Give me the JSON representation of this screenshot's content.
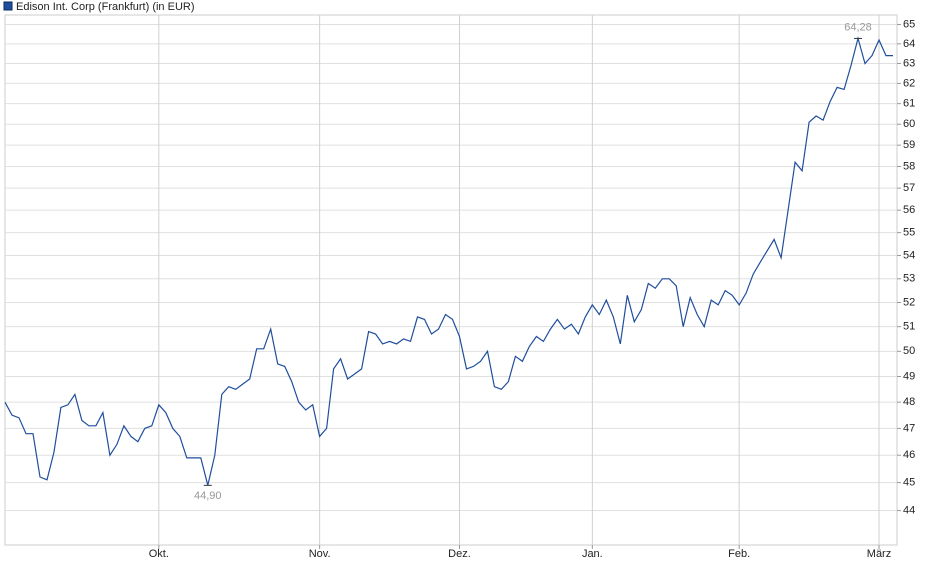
{
  "chart_data": {
    "type": "line",
    "categories": [
      null,
      null,
      null,
      null,
      null,
      null,
      null,
      null,
      null,
      null,
      null,
      null,
      null,
      null,
      null,
      null,
      null,
      null,
      null,
      null,
      null,
      null,
      "Okt.",
      null,
      null,
      null,
      null,
      null,
      null,
      null,
      null,
      null,
      null,
      null,
      null,
      null,
      null,
      null,
      null,
      null,
      null,
      null,
      null,
      null,
      null,
      "Nov.",
      null,
      null,
      null,
      null,
      null,
      null,
      null,
      null,
      null,
      null,
      null,
      null,
      null,
      null,
      null,
      null,
      null,
      null,
      null,
      "Dez.",
      null,
      null,
      null,
      null,
      null,
      null,
      null,
      null,
      null,
      null,
      null,
      null,
      null,
      null,
      null,
      null,
      null,
      null,
      "Jan.",
      null,
      null,
      null,
      null,
      null,
      null,
      null,
      null,
      null,
      null,
      null,
      null,
      null,
      null,
      null,
      null,
      null,
      null,
      null,
      null,
      "Feb.",
      null,
      null,
      null,
      null,
      null,
      null,
      null,
      null,
      null,
      null,
      null,
      null,
      null,
      null,
      null,
      null,
      null,
      null,
      null,
      "März",
      null,
      null
    ],
    "series": [
      {
        "name": "Edison Int. Corp (Frankfurt) (in EUR)",
        "color": "#1f4e9c",
        "values": [
          48.0,
          47.5,
          47.4,
          46.8,
          46.8,
          45.2,
          45.1,
          46.1,
          47.8,
          47.9,
          48.3,
          47.3,
          47.1,
          47.1,
          47.6,
          46.0,
          46.4,
          47.1,
          46.7,
          46.5,
          47.0,
          47.1,
          47.9,
          47.6,
          47.0,
          46.7,
          45.9,
          45.9,
          45.9,
          44.9,
          46.0,
          48.3,
          48.6,
          48.5,
          48.7,
          48.9,
          50.1,
          50.1,
          50.9,
          49.5,
          49.4,
          48.8,
          48.0,
          47.7,
          47.9,
          46.7,
          47.0,
          49.3,
          49.7,
          48.9,
          49.1,
          49.3,
          50.8,
          50.7,
          50.3,
          50.4,
          50.3,
          50.5,
          50.4,
          51.4,
          51.3,
          50.7,
          50.9,
          51.5,
          51.3,
          50.6,
          49.3,
          49.4,
          49.6,
          50.0,
          48.6,
          48.5,
          48.8,
          49.8,
          49.6,
          50.2,
          50.6,
          50.4,
          50.9,
          51.3,
          50.9,
          51.1,
          50.7,
          51.4,
          51.9,
          51.5,
          52.1,
          51.4,
          50.3,
          52.3,
          51.2,
          51.7,
          52.8,
          52.6,
          53.0,
          53.0,
          52.7,
          51.0,
          52.2,
          51.5,
          51.0,
          52.1,
          51.9,
          52.5,
          52.3,
          51.9,
          52.4,
          53.2,
          53.7,
          54.2,
          54.7,
          53.9,
          56.0,
          58.2,
          57.8,
          60.1,
          60.4,
          60.2,
          61.1,
          61.8,
          61.7,
          62.9,
          64.28,
          63.0,
          63.4,
          64.2,
          63.4,
          63.4
        ],
        "value_labels": [
          null,
          null,
          null,
          null,
          null,
          null,
          null,
          null,
          null,
          null,
          null,
          null,
          null,
          null,
          null,
          null,
          null,
          null,
          null,
          null,
          null,
          null,
          null,
          null,
          null,
          null,
          null,
          null,
          null,
          "44,90",
          null,
          null,
          null,
          null,
          null,
          null,
          null,
          null,
          null,
          null,
          null,
          null,
          null,
          null,
          null,
          null,
          null,
          null,
          null,
          null,
          null,
          null,
          null,
          null,
          null,
          null,
          null,
          null,
          null,
          null,
          null,
          null,
          null,
          null,
          null,
          null,
          null,
          null,
          null,
          null,
          null,
          null,
          null,
          null,
          null,
          null,
          null,
          null,
          null,
          null,
          null,
          null,
          null,
          null,
          null,
          null,
          null,
          null,
          null,
          null,
          null,
          null,
          null,
          null,
          null,
          null,
          null,
          null,
          null,
          null,
          null,
          null,
          null,
          null,
          null,
          null,
          null,
          null,
          null,
          null,
          null,
          null,
          null,
          null,
          null,
          null,
          null,
          null,
          null,
          null,
          null,
          null,
          "64,28",
          null,
          null,
          null,
          null,
          null
        ]
      }
    ],
    "ylim": [
      42.8,
      65.5
    ],
    "log_y": true,
    "yticks": [
      44,
      45,
      46,
      47,
      48,
      49,
      50,
      51,
      52,
      53,
      54,
      55,
      56,
      57,
      58,
      59,
      60,
      61,
      62,
      63,
      64,
      65
    ],
    "grid": true
  }
}
